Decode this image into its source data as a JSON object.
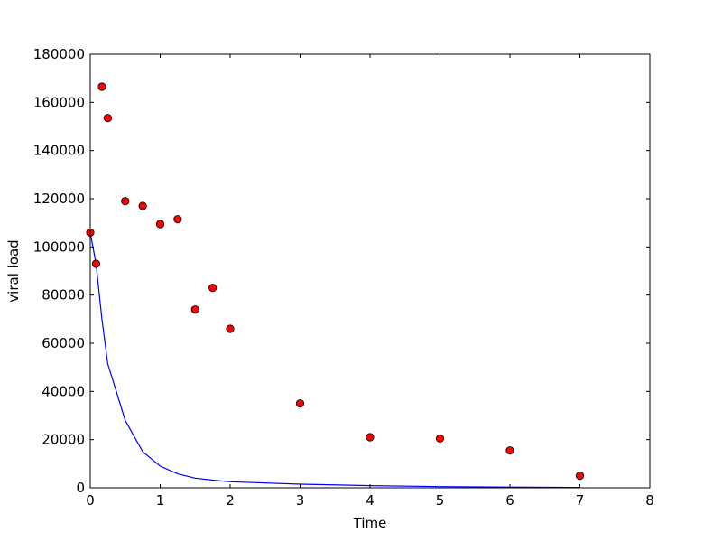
{
  "chart_data": {
    "type": "scatter",
    "title": "",
    "xlabel": "Time",
    "ylabel": "viral load",
    "xlim": [
      0,
      8
    ],
    "ylim": [
      0,
      180000
    ],
    "xticks": [
      0,
      1,
      2,
      3,
      4,
      5,
      6,
      7,
      8
    ],
    "yticks": [
      0,
      20000,
      40000,
      60000,
      80000,
      100000,
      120000,
      140000,
      160000,
      180000
    ],
    "grid": false,
    "legend": "none",
    "series": [
      {
        "type": "scatter",
        "color": "#ff0000",
        "points": [
          {
            "x": 0.0,
            "y": 106000
          },
          {
            "x": 0.083,
            "y": 93000
          },
          {
            "x": 0.167,
            "y": 166500
          },
          {
            "x": 0.25,
            "y": 153500
          },
          {
            "x": 0.5,
            "y": 119000
          },
          {
            "x": 0.75,
            "y": 117000
          },
          {
            "x": 1.0,
            "y": 109500
          },
          {
            "x": 1.25,
            "y": 111500
          },
          {
            "x": 1.5,
            "y": 74000
          },
          {
            "x": 1.75,
            "y": 83000
          },
          {
            "x": 2.0,
            "y": 66000
          },
          {
            "x": 3.0,
            "y": 35000
          },
          {
            "x": 4.0,
            "y": 21000
          },
          {
            "x": 5.0,
            "y": 20500
          },
          {
            "x": 6.0,
            "y": 15500
          },
          {
            "x": 7.0,
            "y": 5000
          }
        ]
      },
      {
        "type": "line",
        "color": "#0000ff",
        "points": [
          {
            "x": 0.0,
            "y": 106000
          },
          {
            "x": 0.083,
            "y": 93000
          },
          {
            "x": 0.167,
            "y": 70000
          },
          {
            "x": 0.25,
            "y": 51500
          },
          {
            "x": 0.5,
            "y": 28000
          },
          {
            "x": 0.75,
            "y": 15000
          },
          {
            "x": 1.0,
            "y": 9000
          },
          {
            "x": 1.25,
            "y": 5800
          },
          {
            "x": 1.5,
            "y": 4000
          },
          {
            "x": 1.75,
            "y": 3200
          },
          {
            "x": 2.0,
            "y": 2500
          },
          {
            "x": 3.0,
            "y": 1500
          },
          {
            "x": 4.0,
            "y": 900
          },
          {
            "x": 5.0,
            "y": 500
          },
          {
            "x": 6.0,
            "y": 300
          },
          {
            "x": 7.0,
            "y": 150
          }
        ]
      }
    ]
  }
}
